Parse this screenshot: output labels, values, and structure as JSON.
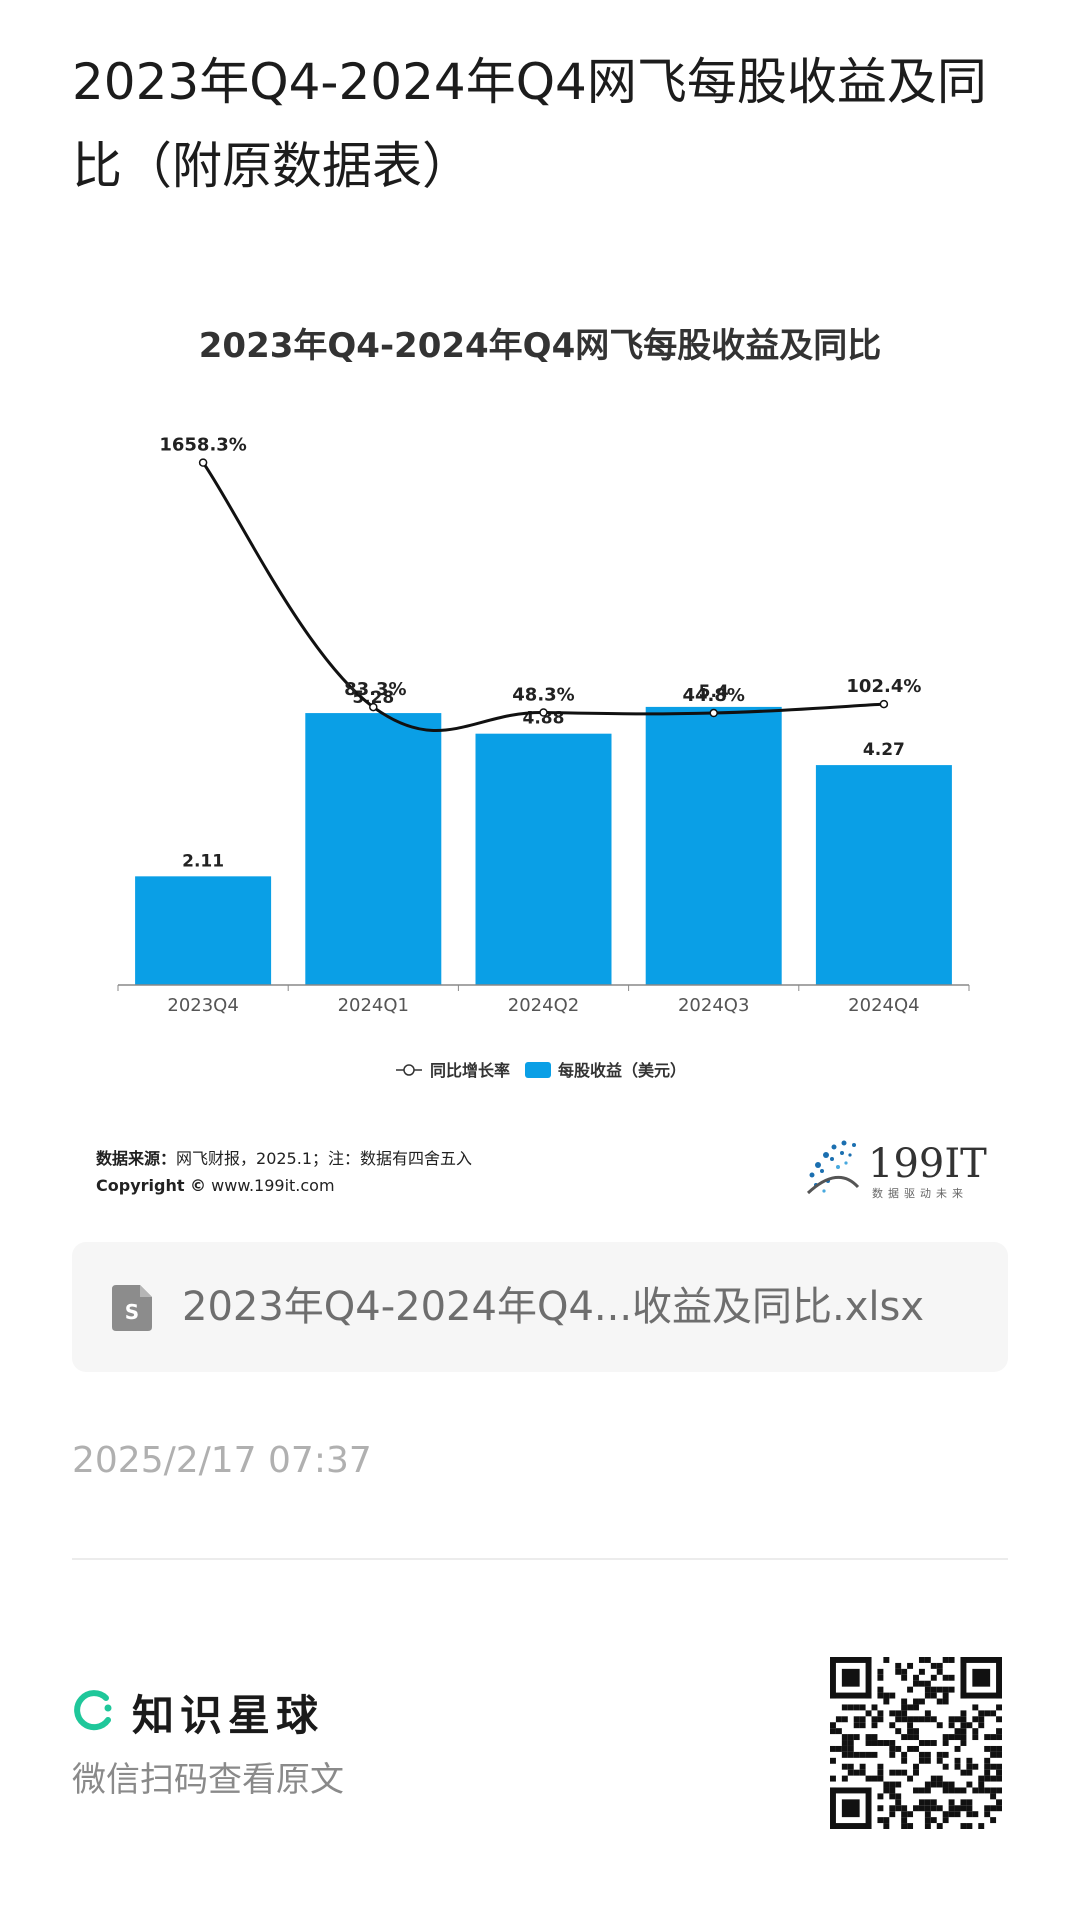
{
  "page": {
    "title": "2023年Q4-2024年Q4网飞每股收益及同比（附原数据表）",
    "source_label": "数据来源：",
    "source_text": "网飞财报，2025.1；注：数据有四舍五入",
    "copyright_label": "Copyright ©",
    "copyright_site": "www.199it.com",
    "brand_number": "199IT",
    "brand_tagline": "数据驱动未来",
    "file_name": "2023年Q4-2024年Q4...收益及同比.xlsx",
    "file_icon": "spreadsheet-file-icon",
    "date": "2025/2/17 07:37",
    "planet_name": "知识星球",
    "scan_hint": "微信扫码查看原文",
    "colors": {
      "bar": "#0a9fe6",
      "line": "#111111",
      "accent": "#1fc79a"
    }
  },
  "chart_data": {
    "type": "bar",
    "title": "2023年Q4-2024年Q4网飞每股收益及同比",
    "categories": [
      "2023Q4",
      "2024Q1",
      "2024Q2",
      "2024Q3",
      "2024Q4"
    ],
    "series": [
      {
        "name": "每股收益（美元）",
        "type": "bar",
        "values": [
          2.11,
          5.28,
          4.88,
          5.4,
          4.27
        ],
        "labels": [
          "2.11",
          "5.28",
          "4.88",
          "5.4",
          "4.27"
        ]
      },
      {
        "name": "同比增长率",
        "type": "line",
        "values": [
          1658.3,
          83.3,
          48.3,
          44.8,
          102.4
        ],
        "labels": [
          "1658.3%",
          "83.3%",
          "48.3%",
          "44.8%",
          "102.4%"
        ]
      }
    ],
    "legend": [
      {
        "name": "同比增长率",
        "marker": "line"
      },
      {
        "name": "每股收益（美元）",
        "marker": "bar"
      }
    ],
    "legend_position": "bottom",
    "grid": false,
    "bar_ylim": [
      0,
      6
    ]
  }
}
